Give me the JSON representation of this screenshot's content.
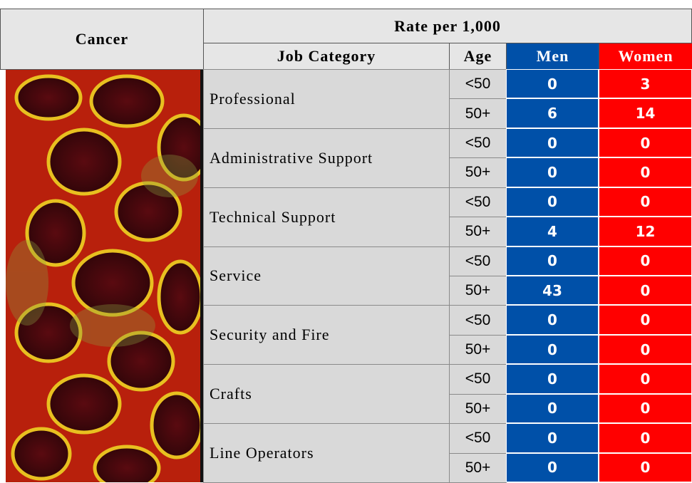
{
  "header": {
    "title": "Cancer",
    "rate_header": "Rate per 1,000",
    "columns": [
      "Job Category",
      "Age",
      "Men",
      "Women"
    ]
  },
  "rows": [
    {
      "category": "Professional",
      "ages": [
        {
          "age": "<50",
          "men": "0",
          "women": "3"
        },
        {
          "age": "50+",
          "men": "6",
          "women": "14"
        }
      ]
    },
    {
      "category": "Administrative Support",
      "ages": [
        {
          "age": "<50",
          "men": "0",
          "women": "0"
        },
        {
          "age": "50+",
          "men": "0",
          "women": "0"
        }
      ]
    },
    {
      "category": "Technical Support",
      "ages": [
        {
          "age": "<50",
          "men": "0",
          "women": "0"
        },
        {
          "age": "50+",
          "men": "4",
          "women": "12"
        }
      ]
    },
    {
      "category": "Service",
      "ages": [
        {
          "age": "<50",
          "men": "0",
          "women": "0"
        },
        {
          "age": "50+",
          "men": "43",
          "women": "0"
        }
      ]
    },
    {
      "category": "Security and Fire",
      "ages": [
        {
          "age": "<50",
          "men": "0",
          "women": "0"
        },
        {
          "age": "50+",
          "men": "0",
          "women": "0"
        }
      ]
    },
    {
      "category": "Crafts",
      "ages": [
        {
          "age": "<50",
          "men": "0",
          "women": "0"
        },
        {
          "age": "50+",
          "men": "0",
          "women": "0"
        }
      ]
    },
    {
      "category": "Line Operators",
      "ages": [
        {
          "age": "<50",
          "men": "0",
          "women": "0"
        },
        {
          "age": "50+",
          "men": "0",
          "women": "0"
        }
      ]
    }
  ]
}
